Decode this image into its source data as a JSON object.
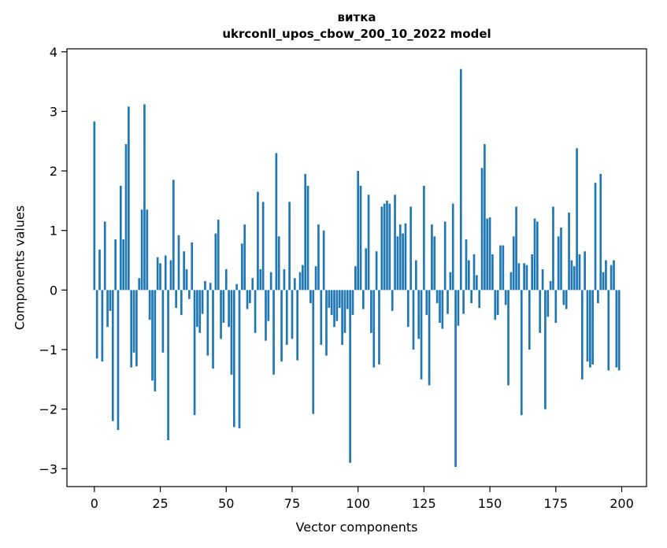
{
  "figure": {
    "title_line1": "витка",
    "title_line2": "ukrconll_upos_cbow_200_10_2022 model",
    "xlabel": "Vector components",
    "ylabel": "Components values"
  },
  "chart_data": {
    "type": "bar",
    "title": "витка",
    "subtitle": "ukrconll_upos_cbow_200_10_2022 model",
    "xlabel": "Vector components",
    "ylabel": "Components values",
    "bar_color": "#1f77b4",
    "grid": false,
    "legend": "none",
    "x_start": 0,
    "xticks": [
      0,
      25,
      50,
      75,
      100,
      125,
      150,
      175,
      200
    ],
    "yticks": [
      -3,
      -2,
      -1,
      0,
      1,
      2,
      3,
      4
    ],
    "xlim": [
      -10.4,
      209.4
    ],
    "ylim": [
      -3.3,
      4.05
    ],
    "values": [
      2.83,
      -1.15,
      0.68,
      -1.2,
      1.15,
      -0.62,
      -0.35,
      -2.2,
      0.85,
      -2.35,
      1.75,
      0.85,
      2.45,
      3.08,
      -1.3,
      -1.05,
      -1.28,
      0.2,
      1.35,
      3.12,
      1.35,
      -0.5,
      -1.52,
      -1.7,
      0.55,
      0.45,
      -1.05,
      0.58,
      -2.52,
      0.5,
      1.85,
      -0.3,
      0.92,
      -0.42,
      0.65,
      0.35,
      -0.15,
      0.8,
      -2.1,
      -0.62,
      -0.72,
      -0.4,
      0.15,
      -1.1,
      0.12,
      -1.32,
      0.95,
      1.18,
      -0.82,
      -0.55,
      0.35,
      -0.62,
      -1.42,
      -2.3,
      0.1,
      -2.32,
      0.78,
      1.1,
      -0.32,
      -0.22,
      0.2,
      -0.72,
      1.65,
      0.35,
      1.48,
      -0.85,
      -0.52,
      0.3,
      -1.42,
      2.3,
      0.9,
      -1.2,
      0.35,
      -0.92,
      1.48,
      -0.82,
      0.2,
      -1.18,
      0.3,
      0.42,
      1.95,
      1.75,
      -0.22,
      -2.08,
      0.4,
      1.1,
      -0.92,
      1.0,
      -1.1,
      -0.3,
      -0.42,
      -0.62,
      -0.52,
      -0.3,
      -0.92,
      -0.72,
      -0.32,
      -2.9,
      -0.42,
      0.4,
      2.0,
      1.75,
      -0.32,
      0.7,
      1.6,
      -0.72,
      -1.3,
      0.65,
      -1.25,
      1.4,
      1.45,
      1.5,
      1.45,
      -0.35,
      1.6,
      0.9,
      1.1,
      0.95,
      1.12,
      -0.62,
      1.4,
      -1.0,
      0.5,
      -0.82,
      -1.5,
      1.75,
      -0.42,
      -1.6,
      1.1,
      0.9,
      -0.22,
      -0.55,
      -0.65,
      1.15,
      -0.4,
      0.3,
      1.45,
      -2.97,
      -0.6,
      3.71,
      -0.4,
      0.85,
      0.5,
      -0.22,
      0.6,
      0.25,
      -0.3,
      2.05,
      2.45,
      1.2,
      1.22,
      0.6,
      -0.5,
      -0.42,
      0.75,
      0.75,
      -0.25,
      -1.6,
      0.3,
      0.9,
      1.4,
      0.45,
      -2.1,
      0.45,
      0.42,
      -1.0,
      0.6,
      1.2,
      1.15,
      -0.72,
      0.35,
      -2.0,
      -0.45,
      0.15,
      1.4,
      -0.55,
      0.9,
      1.05,
      -0.25,
      -0.32,
      1.3,
      0.5,
      0.4,
      2.38,
      0.6,
      -1.5,
      0.65,
      -1.2,
      -1.3,
      -1.25,
      1.8,
      -0.22,
      1.95,
      0.3,
      0.5,
      -1.35,
      0.42,
      0.5,
      -1.3,
      -1.35
    ]
  }
}
